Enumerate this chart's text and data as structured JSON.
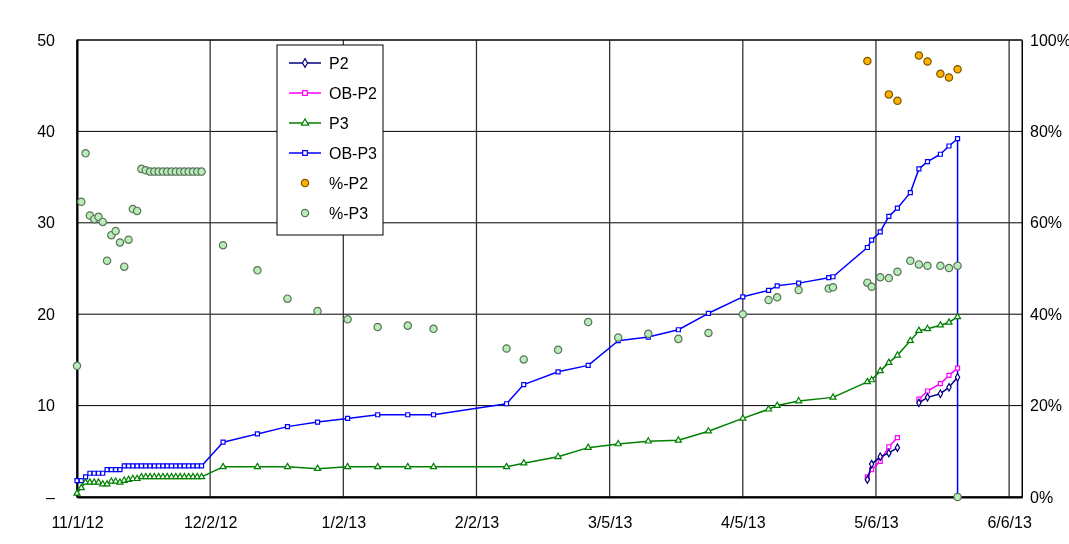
{
  "chart_data": {
    "type": "line",
    "xlim": [
      "2012-11-01",
      "2013-06-09"
    ],
    "xticks": [
      {
        "value": "2012-11-01",
        "label": "11/1/12"
      },
      {
        "value": "2012-12-02",
        "label": "12/2/12"
      },
      {
        "value": "2013-01-02",
        "label": "1/2/13"
      },
      {
        "value": "2013-02-02",
        "label": "2/2/13"
      },
      {
        "value": "2013-03-05",
        "label": "3/5/13"
      },
      {
        "value": "2013-04-05",
        "label": "4/5/13"
      },
      {
        "value": "2013-05-06",
        "label": "5/6/13"
      },
      {
        "value": "2013-06-06",
        "label": "6/6/13"
      }
    ],
    "ylim": [
      0,
      50
    ],
    "yticks": [
      {
        "value": 0,
        "label": "–"
      },
      10,
      20,
      30,
      40,
      50
    ],
    "y2lim": [
      0,
      100
    ],
    "y2ticks": [
      {
        "value": 0,
        "label": "0%"
      },
      {
        "value": 20,
        "label": "20%"
      },
      {
        "value": 40,
        "label": "40%"
      },
      {
        "value": 60,
        "label": "60%"
      },
      {
        "value": 80,
        "label": "80%"
      },
      {
        "value": 100,
        "label": "100%"
      }
    ],
    "grid": true,
    "legend": "top left",
    "series": [
      {
        "name": "P2",
        "marker": "diamond",
        "color": "#000080",
        "x": [
          "2013-05-04",
          "2013-05-05",
          "2013-05-07",
          "2013-05-09",
          "2013-05-11",
          "2013-05-14",
          "2013-05-16",
          "2013-05-18",
          "2013-05-21",
          "2013-05-23",
          "2013-05-25"
        ],
        "values": [
          1.9,
          3.6,
          4.4,
          4.8,
          5.4,
          null,
          10.3,
          10.9,
          11.3,
          12.0,
          13.1
        ]
      },
      {
        "name": "OB-P2",
        "marker": "square",
        "color": "#ff00ff",
        "x": [
          "2013-05-04",
          "2013-05-05",
          "2013-05-07",
          "2013-05-09",
          "2013-05-11",
          "2013-05-14",
          "2013-05-16",
          "2013-05-18",
          "2013-05-21",
          "2013-05-23",
          "2013-05-25"
        ],
        "values": [
          2.2,
          3.0,
          3.9,
          5.5,
          6.5,
          null,
          10.7,
          11.6,
          12.4,
          13.3,
          14.1
        ]
      },
      {
        "name": "P3",
        "marker": "triangle",
        "color": "#008000",
        "x": [
          "2012-11-01",
          "2012-11-02",
          "2012-11-03",
          "2012-11-04",
          "2012-11-05",
          "2012-11-06",
          "2012-11-07",
          "2012-11-08",
          "2012-11-09",
          "2012-11-10",
          "2012-11-11",
          "2012-11-12",
          "2012-11-13",
          "2012-11-14",
          "2012-11-15",
          "2012-11-16",
          "2012-11-17",
          "2012-11-18",
          "2012-11-19",
          "2012-11-20",
          "2012-11-21",
          "2012-11-22",
          "2012-11-23",
          "2012-11-24",
          "2012-11-25",
          "2012-11-26",
          "2012-11-27",
          "2012-11-28",
          "2012-11-29",
          "2012-11-30",
          "2012-12-05",
          "2012-12-13",
          "2012-12-20",
          "2012-12-27",
          "2013-01-03",
          "2013-01-10",
          "2013-01-17",
          "2013-01-23",
          "2013-02-09",
          "2013-02-13",
          "2013-02-21",
          "2013-02-28",
          "2013-03-07",
          "2013-03-14",
          "2013-03-21",
          "2013-03-28",
          "2013-04-05",
          "2013-04-11",
          "2013-04-13",
          "2013-04-18",
          "2013-04-26",
          "2013-05-04",
          "2013-05-05",
          "2013-05-07",
          "2013-05-09",
          "2013-05-11",
          "2013-05-14",
          "2013-05-16",
          "2013-05-18",
          "2013-05-21",
          "2013-05-23",
          "2013-05-25"
        ],
        "values": [
          0.4,
          1.0,
          1.6,
          1.6,
          1.6,
          1.6,
          1.4,
          1.4,
          1.7,
          1.7,
          1.6,
          1.8,
          1.9,
          2.0,
          2.0,
          2.2,
          2.2,
          2.2,
          2.2,
          2.2,
          2.2,
          2.2,
          2.2,
          2.2,
          2.2,
          2.2,
          2.2,
          2.2,
          2.2,
          2.2,
          3.3,
          3.3,
          3.3,
          3.1,
          3.3,
          3.3,
          3.3,
          3.3,
          3.3,
          3.7,
          4.4,
          5.4,
          5.8,
          6.1,
          6.2,
          7.2,
          8.6,
          9.6,
          10.0,
          10.5,
          10.9,
          12.6,
          12.8,
          13.8,
          14.7,
          15.5,
          17.1,
          18.2,
          18.4,
          18.8,
          19.1,
          19.7
        ]
      },
      {
        "name": "OB-P3",
        "marker": "square",
        "color": "#0000ff",
        "x": [
          "2012-11-01",
          "2012-11-02",
          "2012-11-03",
          "2012-11-04",
          "2012-11-05",
          "2012-11-06",
          "2012-11-07",
          "2012-11-08",
          "2012-11-09",
          "2012-11-10",
          "2012-11-11",
          "2012-11-12",
          "2012-11-13",
          "2012-11-14",
          "2012-11-15",
          "2012-11-16",
          "2012-11-17",
          "2012-11-18",
          "2012-11-19",
          "2012-11-20",
          "2012-11-21",
          "2012-11-22",
          "2012-11-23",
          "2012-11-24",
          "2012-11-25",
          "2012-11-26",
          "2012-11-27",
          "2012-11-28",
          "2012-11-29",
          "2012-11-30",
          "2012-12-05",
          "2012-12-13",
          "2012-12-20",
          "2012-12-27",
          "2013-01-03",
          "2013-01-10",
          "2013-01-17",
          "2013-01-23",
          "2013-02-09",
          "2013-02-13",
          "2013-02-21",
          "2013-02-28",
          "2013-03-07",
          "2013-03-14",
          "2013-03-21",
          "2013-03-28",
          "2013-04-05",
          "2013-04-11",
          "2013-04-13",
          "2013-04-18",
          "2013-04-25",
          "2013-04-26",
          "2013-05-04",
          "2013-05-05",
          "2013-05-07",
          "2013-05-09",
          "2013-05-11",
          "2013-05-14",
          "2013-05-16",
          "2013-05-18",
          "2013-05-21",
          "2013-05-23",
          "2013-05-25",
          "2013-05-25"
        ],
        "values": [
          1.8,
          1.8,
          2.2,
          2.6,
          2.6,
          2.6,
          2.6,
          3.0,
          3.0,
          3.0,
          3.0,
          3.4,
          3.4,
          3.4,
          3.4,
          3.4,
          3.4,
          3.4,
          3.4,
          3.4,
          3.4,
          3.4,
          3.4,
          3.4,
          3.4,
          3.4,
          3.4,
          3.4,
          3.4,
          3.4,
          6.0,
          6.9,
          7.7,
          8.2,
          8.6,
          9.0,
          9.0,
          9.0,
          10.2,
          12.3,
          13.7,
          14.4,
          17.1,
          17.5,
          18.3,
          20.1,
          21.9,
          22.6,
          23.1,
          23.4,
          24.0,
          24.1,
          27.3,
          28.1,
          29.0,
          30.7,
          31.6,
          33.3,
          35.9,
          36.7,
          37.5,
          38.4,
          39.2,
          0
        ]
      },
      {
        "name": "%-P2",
        "type": "scatter",
        "axis": "y2",
        "marker": "circle",
        "color": "#ffb000",
        "x": [
          "2013-05-04",
          "2013-05-09",
          "2013-05-11",
          "2013-05-16",
          "2013-05-18",
          "2013-05-21",
          "2013-05-23",
          "2013-05-25"
        ],
        "values": [
          95.4,
          88.1,
          86.7,
          96.6,
          95.3,
          92.6,
          91.8,
          93.6
        ]
      },
      {
        "name": "%-P3",
        "type": "scatter",
        "axis": "y2",
        "marker": "circle",
        "color": "#b8ecb8",
        "x": [
          "2012-11-01",
          "2012-11-02",
          "2012-11-03",
          "2012-11-04",
          "2012-11-05",
          "2012-11-06",
          "2012-11-07",
          "2012-11-08",
          "2012-11-09",
          "2012-11-10",
          "2012-11-11",
          "2012-11-12",
          "2012-11-13",
          "2012-11-14",
          "2012-11-15",
          "2012-11-16",
          "2012-11-17",
          "2012-11-18",
          "2012-11-19",
          "2012-11-20",
          "2012-11-21",
          "2012-11-22",
          "2012-11-23",
          "2012-11-24",
          "2012-11-25",
          "2012-11-26",
          "2012-11-27",
          "2012-11-28",
          "2012-11-29",
          "2012-11-30",
          "2012-12-05",
          "2012-12-13",
          "2012-12-20",
          "2012-12-27",
          "2013-01-03",
          "2013-01-10",
          "2013-01-17",
          "2013-01-23",
          "2013-02-09",
          "2013-02-13",
          "2013-02-21",
          "2013-02-28",
          "2013-03-07",
          "2013-03-14",
          "2013-03-21",
          "2013-03-28",
          "2013-04-05",
          "2013-04-11",
          "2013-04-13",
          "2013-04-18",
          "2013-04-25",
          "2013-04-26",
          "2013-05-04",
          "2013-05-05",
          "2013-05-07",
          "2013-05-09",
          "2013-05-11",
          "2013-05-14",
          "2013-05-16",
          "2013-05-18",
          "2013-05-21",
          "2013-05-23",
          "2013-05-25",
          "2013-05-25"
        ],
        "values": [
          28.7,
          64.6,
          75.2,
          61.6,
          60.8,
          61.3,
          60.2,
          51.7,
          57.3,
          58.2,
          55.7,
          50.4,
          56.3,
          63.0,
          62.6,
          71.8,
          71.5,
          71.2,
          71.2,
          71.2,
          71.2,
          71.2,
          71.2,
          71.2,
          71.2,
          71.2,
          71.2,
          71.2,
          71.2,
          71.2,
          55.1,
          49.6,
          43.4,
          40.7,
          38.9,
          37.2,
          37.5,
          36.8,
          32.5,
          30.1,
          32.2,
          38.3,
          34.9,
          35.7,
          34.6,
          35.9,
          40.0,
          43.1,
          43.7,
          45.3,
          45.6,
          45.9,
          46.9,
          46.0,
          48.1,
          47.9,
          49.3,
          51.7,
          50.9,
          50.6,
          50.6,
          50.1,
          50.6,
          0
        ]
      }
    ]
  }
}
